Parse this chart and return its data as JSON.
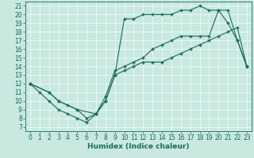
{
  "title": "",
  "xlabel": "Humidex (Indice chaleur)",
  "ylabel": "",
  "xlim": [
    -0.5,
    23.5
  ],
  "ylim": [
    6.5,
    21.5
  ],
  "xticks": [
    0,
    1,
    2,
    3,
    4,
    5,
    6,
    7,
    8,
    9,
    10,
    11,
    12,
    13,
    14,
    15,
    16,
    17,
    18,
    19,
    20,
    21,
    22,
    23
  ],
  "yticks": [
    7,
    8,
    9,
    10,
    11,
    12,
    13,
    14,
    15,
    16,
    17,
    18,
    19,
    20,
    21
  ],
  "bg_color": "#c8e8e0",
  "grid_color": "#e8f8f4",
  "line_color": "#1a6b5a",
  "line1_x": [
    0,
    1,
    2,
    3,
    4,
    5,
    6,
    7,
    8,
    9,
    10,
    11,
    12,
    13,
    14,
    15,
    16,
    17,
    18,
    19,
    20,
    21,
    22,
    23
  ],
  "line1_y": [
    12,
    11,
    10,
    9,
    8.5,
    8,
    7.5,
    8.5,
    10,
    13,
    19.5,
    19.5,
    20,
    20,
    20,
    20,
    20.5,
    20.5,
    21,
    20.5,
    20.5,
    19,
    17,
    14
  ],
  "line2_x": [
    0,
    2,
    3,
    4,
    5,
    6,
    7,
    8,
    9,
    10,
    11,
    12,
    13,
    14,
    15,
    16,
    17,
    18,
    19,
    20,
    21,
    22,
    23
  ],
  "line2_y": [
    12,
    11,
    10,
    9.5,
    9,
    8,
    8.5,
    10.5,
    13.5,
    14,
    14.5,
    15,
    16,
    16.5,
    17,
    17.5,
    17.5,
    17.5,
    17.5,
    20.5,
    20.5,
    17,
    14
  ],
  "line3_x": [
    0,
    2,
    3,
    5,
    7,
    8,
    9,
    10,
    11,
    12,
    13,
    14,
    15,
    16,
    17,
    18,
    19,
    20,
    21,
    22,
    23
  ],
  "line3_y": [
    12,
    11,
    10,
    9,
    8.5,
    10,
    13,
    13.5,
    14,
    14.5,
    14.5,
    14.5,
    15,
    15.5,
    16,
    16.5,
    17,
    17.5,
    18,
    18.5,
    14
  ],
  "fontsize_label": 6.5,
  "fontsize_tick": 5.5
}
